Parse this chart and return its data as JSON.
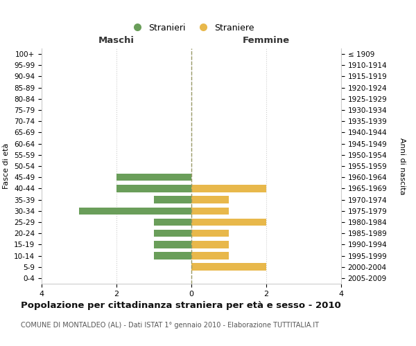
{
  "age_groups": [
    "0-4",
    "5-9",
    "10-14",
    "15-19",
    "20-24",
    "25-29",
    "30-34",
    "35-39",
    "40-44",
    "45-49",
    "50-54",
    "55-59",
    "60-64",
    "65-69",
    "70-74",
    "75-79",
    "80-84",
    "85-89",
    "90-94",
    "95-99",
    "100+"
  ],
  "birth_years": [
    "2005-2009",
    "2000-2004",
    "1995-1999",
    "1990-1994",
    "1985-1989",
    "1980-1984",
    "1975-1979",
    "1970-1974",
    "1965-1969",
    "1960-1964",
    "1955-1959",
    "1950-1954",
    "1945-1949",
    "1940-1944",
    "1935-1939",
    "1930-1934",
    "1925-1929",
    "1920-1924",
    "1915-1919",
    "1910-1914",
    "≤ 1909"
  ],
  "maschi": [
    0,
    0,
    1,
    1,
    1,
    1,
    3,
    1,
    2,
    2,
    0,
    0,
    0,
    0,
    0,
    0,
    0,
    0,
    0,
    0,
    0
  ],
  "femmine": [
    0,
    2,
    1,
    1,
    1,
    2,
    1,
    1,
    2,
    0,
    0,
    0,
    0,
    0,
    0,
    0,
    0,
    0,
    0,
    0,
    0
  ],
  "color_maschi": "#6a9e5a",
  "color_femmine": "#e8b84b",
  "xlim": 4,
  "title": "Popolazione per cittadinanza straniera per età e sesso - 2010",
  "subtitle": "COMUNE DI MONTALDEO (AL) - Dati ISTAT 1° gennaio 2010 - Elaborazione TUTTITALIA.IT",
  "ylabel_left": "Fasce di età",
  "ylabel_right": "Anni di nascita",
  "legend_maschi": "Stranieri",
  "legend_femmine": "Straniere",
  "xlabel_maschi": "Maschi",
  "xlabel_femmine": "Femmine",
  "bg_color": "#ffffff",
  "grid_color": "#cccccc",
  "bar_height": 0.65
}
